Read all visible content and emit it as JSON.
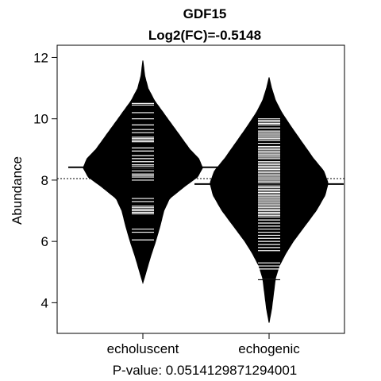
{
  "chart_data": {
    "type": "beanplot",
    "title": "GDF15",
    "subtitle": "Log2(FC)=-0.5148",
    "xlabel": "P-value: 0.0514129871294001",
    "ylabel": "Abundance",
    "ylim": [
      3.0,
      12.4
    ],
    "yticks": [
      4,
      6,
      8,
      10,
      12
    ],
    "categories": [
      "echoluscent",
      "echogenic"
    ],
    "overall_mean": 8.05,
    "groups": [
      {
        "name": "echoluscent",
        "mean": 8.42,
        "range": [
          4.65,
          11.9
        ],
        "density_profile": [
          [
            4.65,
            0.0
          ],
          [
            5.0,
            0.05
          ],
          [
            5.5,
            0.12
          ],
          [
            6.0,
            0.2
          ],
          [
            6.5,
            0.27
          ],
          [
            7.0,
            0.33
          ],
          [
            7.4,
            0.42
          ],
          [
            7.8,
            0.66
          ],
          [
            8.1,
            0.86
          ],
          [
            8.4,
            0.94
          ],
          [
            8.7,
            0.88
          ],
          [
            9.0,
            0.74
          ],
          [
            9.4,
            0.6
          ],
          [
            9.8,
            0.46
          ],
          [
            10.2,
            0.32
          ],
          [
            10.6,
            0.18
          ],
          [
            11.0,
            0.08
          ],
          [
            11.4,
            0.03
          ],
          [
            11.9,
            0.0
          ]
        ],
        "values": [
          10.5,
          10.45,
          10.2,
          10.0,
          9.8,
          9.65,
          9.55,
          9.4,
          9.35,
          9.3,
          9.25,
          9.05,
          8.95,
          8.8,
          8.7,
          8.6,
          8.5,
          8.45,
          8.4,
          8.3,
          8.2,
          8.15,
          8.1,
          8.0,
          7.4,
          7.3,
          7.15,
          7.1,
          7.05,
          7.0,
          6.95,
          6.9,
          6.4,
          6.3,
          6.05
        ]
      },
      {
        "name": "echogenic",
        "mean": 7.87,
        "range": [
          3.35,
          11.35
        ],
        "density_profile": [
          [
            3.35,
            0.0
          ],
          [
            3.8,
            0.04
          ],
          [
            4.3,
            0.07
          ],
          [
            4.8,
            0.1
          ],
          [
            5.2,
            0.16
          ],
          [
            5.6,
            0.26
          ],
          [
            6.0,
            0.38
          ],
          [
            6.5,
            0.56
          ],
          [
            7.0,
            0.74
          ],
          [
            7.5,
            0.88
          ],
          [
            7.9,
            0.93
          ],
          [
            8.3,
            0.86
          ],
          [
            8.7,
            0.7
          ],
          [
            9.2,
            0.53
          ],
          [
            9.7,
            0.36
          ],
          [
            10.2,
            0.2
          ],
          [
            10.6,
            0.1
          ],
          [
            11.0,
            0.04
          ],
          [
            11.35,
            0.0
          ]
        ],
        "values": [
          10.0,
          9.95,
          9.9,
          9.85,
          9.8,
          9.7,
          9.6,
          9.55,
          9.5,
          9.45,
          9.4,
          9.35,
          9.3,
          9.2,
          9.1,
          9.05,
          9.0,
          8.95,
          8.9,
          8.85,
          8.8,
          8.75,
          8.7,
          8.6,
          8.55,
          8.5,
          8.45,
          8.4,
          8.35,
          8.3,
          8.25,
          8.2,
          8.15,
          8.1,
          8.05,
          8.0,
          7.95,
          7.9,
          7.85,
          7.8,
          7.75,
          7.7,
          7.65,
          7.6,
          7.55,
          7.5,
          7.45,
          7.4,
          7.35,
          7.3,
          7.25,
          7.2,
          7.15,
          7.1,
          7.05,
          7.0,
          6.95,
          6.9,
          6.85,
          6.8,
          6.7,
          6.6,
          6.5,
          6.4,
          6.3,
          6.2,
          6.1,
          6.0,
          5.9,
          5.8,
          5.7,
          5.3,
          5.2,
          5.1,
          4.75
        ]
      }
    ],
    "colors": {
      "bean": "#000000",
      "line": "#ffffff",
      "background": "#ffffff"
    }
  }
}
